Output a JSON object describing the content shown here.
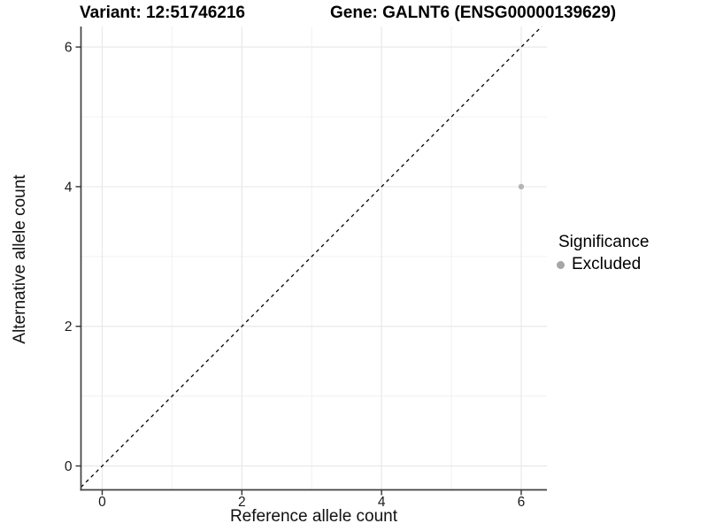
{
  "header": {
    "title_left": "Variant: 12:51746216",
    "title_right": "Gene: GALNT6 (ENSG00000139629)"
  },
  "chart_data": {
    "type": "scatter",
    "title": "Variant: 12:51746216  Gene: GALNT6 (ENSG00000139629)",
    "xlabel": "Reference allele count",
    "ylabel": "Alternative allele count",
    "xlim": [
      -0.304,
      6.368
    ],
    "ylim": [
      -0.342,
      6.293
    ],
    "x_ticks": [
      0,
      2,
      4,
      6
    ],
    "y_ticks": [
      0,
      2,
      4,
      6
    ],
    "x_minor_ticks": [
      1,
      3,
      5
    ],
    "y_minor_ticks": [
      1,
      3,
      5
    ],
    "grid": true,
    "points": [
      {
        "x": 6,
        "y": 4,
        "series": "Excluded"
      }
    ],
    "reference_line": {
      "style": "dashed",
      "slope": 1,
      "intercept": 0
    },
    "legend": {
      "position": "right",
      "title": "Significance",
      "entries": [
        {
          "label": "Excluded",
          "color": "#a6a6a6"
        }
      ]
    },
    "colors": {
      "point": "#b5b5b5",
      "grid_major": "#e9e9e9",
      "grid_minor": "#f1f1f1",
      "axis": "#404040",
      "tick": "#333333",
      "tick_label": "#1a1a1a",
      "dashed_line": "#000000",
      "background": "#ffffff"
    }
  }
}
